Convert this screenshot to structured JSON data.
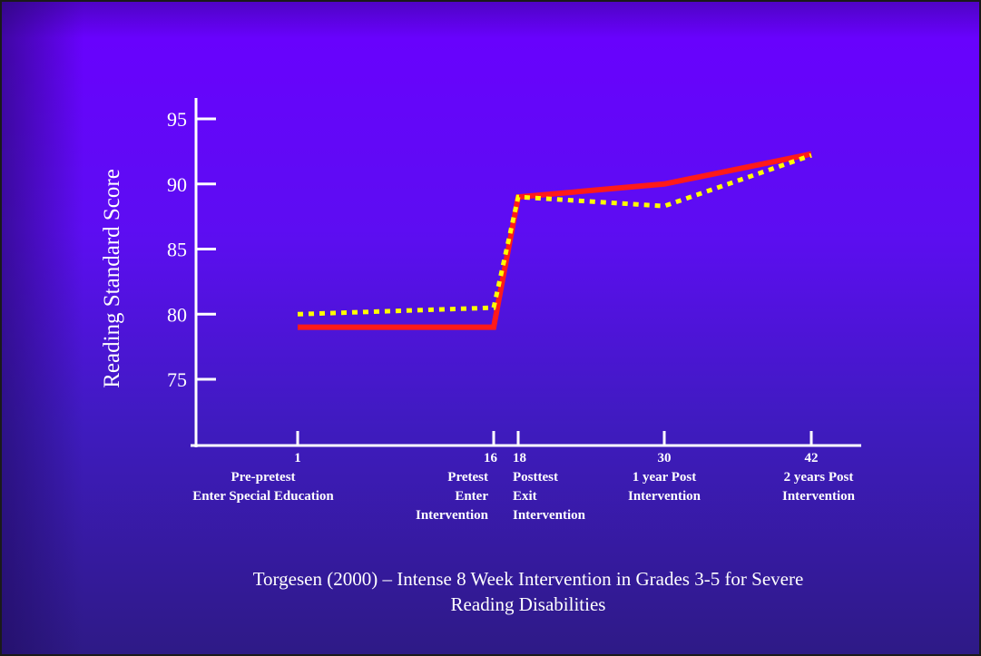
{
  "chart_data": {
    "type": "line",
    "ylabel": "Reading Standard Score",
    "yticks": [
      75,
      80,
      85,
      90,
      95
    ],
    "ylim": [
      70,
      97
    ],
    "xlim": [
      -2,
      45
    ],
    "x": [
      1,
      16,
      18,
      30,
      42
    ],
    "xtick_labels": [
      [
        "1",
        "Pre-pretest",
        "Enter Special Education"
      ],
      [
        "16",
        "Pretest",
        "Enter",
        "Intervention"
      ],
      [
        "18",
        "Posttest",
        "Exit",
        "Intervention"
      ],
      [
        "30",
        "1 year Post",
        "Intervention"
      ],
      [
        "42",
        "2 years Post",
        "Intervention"
      ]
    ],
    "series": [
      {
        "style": "solid",
        "color": "#ff1a1a",
        "points": [
          [
            1,
            79
          ],
          [
            16,
            79
          ],
          [
            18,
            89
          ],
          [
            30,
            90
          ],
          [
            42,
            92.3
          ]
        ]
      },
      {
        "style": "dotted",
        "color": "#ffff00",
        "points": [
          [
            1,
            80
          ],
          [
            16,
            80.5
          ],
          [
            18,
            89
          ],
          [
            30,
            88.3
          ],
          [
            42,
            92.2
          ]
        ]
      }
    ],
    "grid": false
  },
  "caption": {
    "line1": "Torgesen (2000) – Intense 8 Week Intervention in Grades 3-5 for Severe",
    "line2": "Reading Disabilities"
  }
}
